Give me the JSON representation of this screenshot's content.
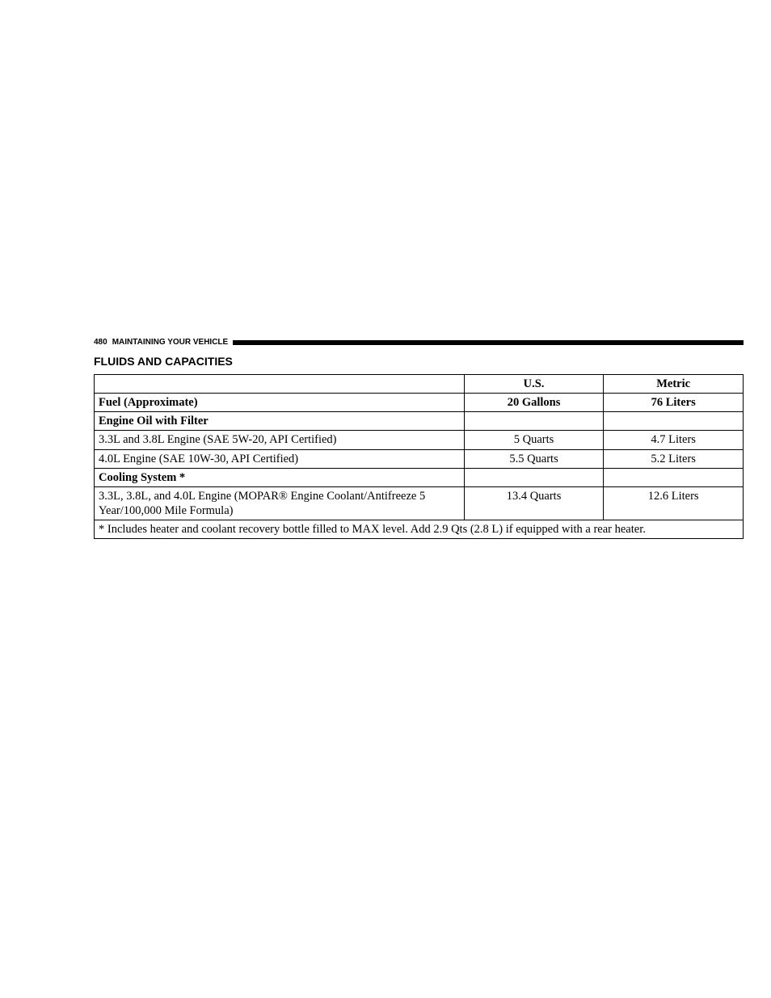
{
  "header": {
    "page_number": "480",
    "section": "MAINTAINING YOUR VEHICLE"
  },
  "title": "FLUIDS AND CAPACITIES",
  "table": {
    "columns": {
      "item": "",
      "us": "U.S.",
      "metric": "Metric"
    },
    "rows": [
      {
        "type": "bold",
        "item": "Fuel (Approximate)",
        "us": "20 Gallons",
        "metric": "76 Liters"
      },
      {
        "type": "bold",
        "item": "Engine Oil with Filter",
        "us": "",
        "metric": ""
      },
      {
        "type": "normal",
        "item": "3.3L and 3.8L Engine (SAE 5W-20, API Certified)",
        "us": "5 Quarts",
        "metric": "4.7 Liters"
      },
      {
        "type": "normal",
        "item": "4.0L Engine (SAE 10W-30, API Certified)",
        "us": "5.5 Quarts",
        "metric": "5.2 Liters"
      },
      {
        "type": "bold",
        "item": "Cooling System *",
        "us": "",
        "metric": ""
      },
      {
        "type": "normal",
        "item": "3.3L, 3.8L, and 4.0L Engine (MOPAR® Engine Coolant/Antifreeze 5 Year/100,000 Mile Formula)",
        "us": "13.4 Quarts",
        "metric": "12.6 Liters"
      }
    ],
    "footnote": "* Includes heater and coolant recovery bottle filled to MAX level. Add 2.9 Qts (2.8 L) if equipped with a rear heater."
  },
  "colors": {
    "background": "#ffffff",
    "text": "#000000",
    "border": "#000000",
    "header_rule": "#000000"
  },
  "fonts": {
    "header_family": "Arial",
    "header_size_pt": 10,
    "title_family": "Arial",
    "title_size_pt": 14,
    "body_family": "Georgia",
    "body_size_pt": 14.5
  }
}
